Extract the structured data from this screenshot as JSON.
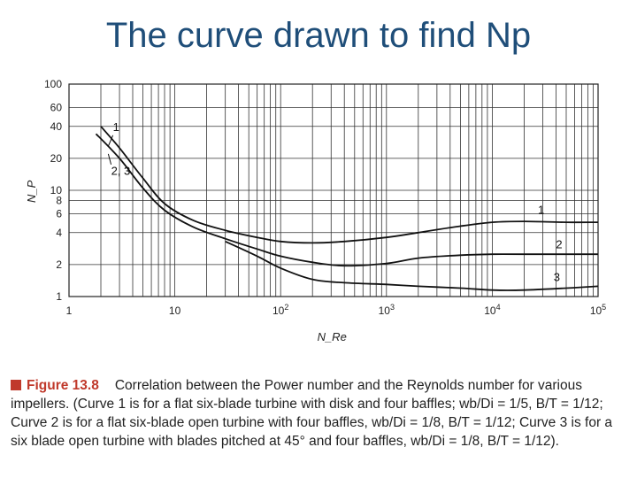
{
  "slide": {
    "title": "The curve drawn to find Np"
  },
  "caption": {
    "label": "Figure 13.8",
    "description": "Correlation between the Power number and the Reynolds number for various",
    "body": "impellers. (Curve 1 is for a flat six-blade turbine with disk and four baffles; wb/Di = 1/5, B/T = 1/12; Curve 2 is for a flat six-blade open turbine with four baffles, wb/Di = 1/8, B/T = 1/12; Curve 3 is for a six blade open turbine with blades pitched at 45° and four baffles, wb/Di = 1/8, B/T = 1/12)."
  },
  "chart_data": {
    "type": "line",
    "title": "",
    "xlabel": "N_Re",
    "ylabel": "N_P",
    "xscale": "log",
    "yscale": "log",
    "xlim": [
      1,
      100000
    ],
    "ylim": [
      1,
      100
    ],
    "grid": true,
    "xticks": [
      {
        "value": 1,
        "label": "1",
        "sup": ""
      },
      {
        "value": 10,
        "label": "10",
        "sup": ""
      },
      {
        "value": 100,
        "label": "10",
        "sup": "2"
      },
      {
        "value": 1000,
        "label": "10",
        "sup": "3"
      },
      {
        "value": 10000,
        "label": "10",
        "sup": "4"
      },
      {
        "value": 100000,
        "label": "10",
        "sup": "5"
      }
    ],
    "yticks": [
      {
        "value": 1,
        "label": "1"
      },
      {
        "value": 2,
        "label": "2"
      },
      {
        "value": 4,
        "label": "4"
      },
      {
        "value": 6,
        "label": "6"
      },
      {
        "value": 8,
        "label": "8"
      },
      {
        "value": 10,
        "label": "10"
      },
      {
        "value": 20,
        "label": "20"
      },
      {
        "value": 40,
        "label": "40"
      },
      {
        "value": 60,
        "label": "60"
      },
      {
        "value": 100,
        "label": "100"
      }
    ],
    "series": [
      {
        "name": "1",
        "x": [
          2,
          3,
          5,
          8,
          15,
          30,
          60,
          100,
          200,
          400,
          1000,
          2000,
          5000,
          10000,
          20000,
          50000,
          100000
        ],
        "y": [
          40,
          25,
          13,
          7.5,
          5.2,
          4.2,
          3.6,
          3.3,
          3.2,
          3.3,
          3.6,
          4.0,
          4.6,
          5.0,
          5.1,
          5.0,
          5.0
        ]
      },
      {
        "name": "2",
        "x": [
          1.8,
          3,
          5,
          8,
          15,
          30,
          60,
          100,
          200,
          400,
          1000,
          2000,
          5000,
          10000,
          20000,
          50000,
          100000
        ],
        "y": [
          34,
          20,
          10.5,
          6.5,
          4.5,
          3.5,
          2.8,
          2.4,
          2.1,
          1.95,
          2.05,
          2.3,
          2.45,
          2.5,
          2.5,
          2.5,
          2.5
        ]
      },
      {
        "name": "3",
        "x": [
          30,
          60,
          100,
          200,
          400,
          1000,
          2000,
          5000,
          10000,
          20000,
          50000,
          100000
        ],
        "y": [
          3.3,
          2.4,
          1.85,
          1.45,
          1.35,
          1.3,
          1.25,
          1.2,
          1.15,
          1.15,
          1.2,
          1.25
        ]
      }
    ],
    "annotations": [
      {
        "text": "1",
        "x": 2.6,
        "y": 36
      },
      {
        "text": "2, 3",
        "x": 2.5,
        "y": 14
      },
      {
        "text": "1",
        "x": 27000,
        "y": 6.0
      },
      {
        "text": "2",
        "x": 40000,
        "y": 2.85
      },
      {
        "text": "3",
        "x": 38000,
        "y": 1.4
      }
    ]
  }
}
